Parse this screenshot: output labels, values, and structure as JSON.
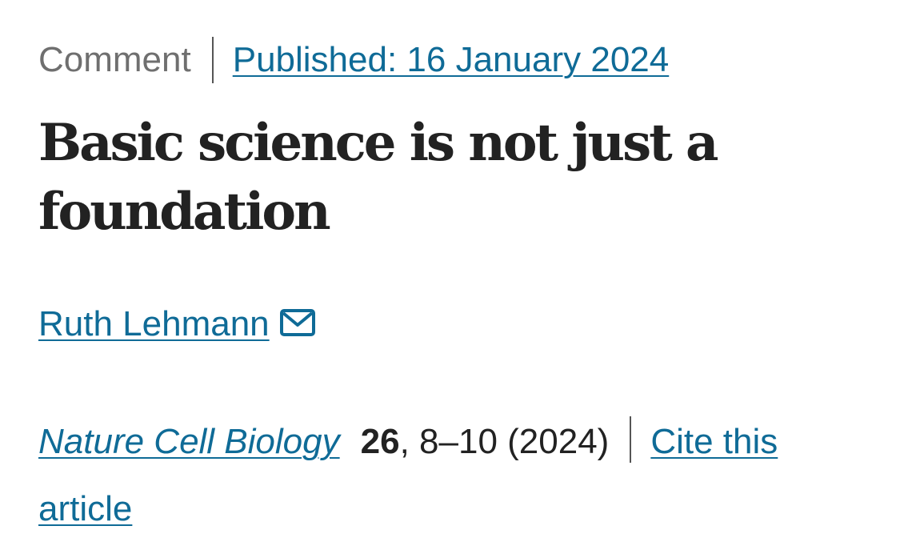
{
  "article": {
    "type": "Comment",
    "published": "Published: 16 January 2024",
    "title": "Basic science is not just a foundation",
    "author": "Ruth Lehmann",
    "journal": "Nature Cell Biology",
    "volume": "26",
    "pages": ", 8–10 (2024)",
    "cite": "Cite this article"
  },
  "icons": {
    "author_contact": "mail-icon"
  },
  "colors": {
    "link": "#0f6b97",
    "text": "#222222",
    "muted": "#6f6f6f"
  }
}
